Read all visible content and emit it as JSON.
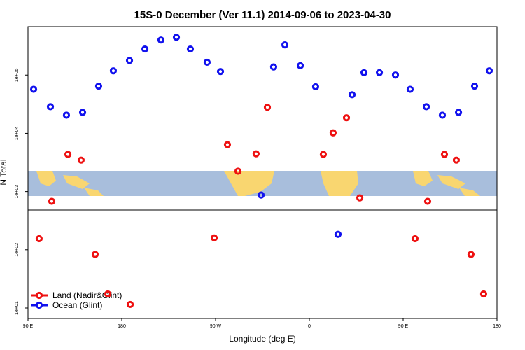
{
  "chart_data": {
    "type": "scatter",
    "title": "15S-0 December (Ver 11.1)   2014-09-06 to 2023-04-30",
    "x_label": "Longitude (deg E)",
    "y_label": "N Total",
    "xlim": [
      90,
      540
    ],
    "xticks": [
      {
        "value": 90,
        "label": "90 E"
      },
      {
        "value": 180,
        "label": "180"
      },
      {
        "value": 270,
        "label": "90 W"
      },
      {
        "value": 360,
        "label": "0"
      },
      {
        "value": 450,
        "label": "90 E"
      },
      {
        "value": 540,
        "label": "180"
      }
    ],
    "ylim": [
      6.6,
      680000
    ],
    "log_scale_y": true,
    "yticks": [
      {
        "value": 10,
        "label": "1e+01"
      },
      {
        "value": 100,
        "label": "1e+02"
      },
      {
        "value": 1000,
        "label": "1e+03"
      },
      {
        "value": 10000,
        "label": "1e+04"
      },
      {
        "value": 100000,
        "label": "1e+05"
      }
    ],
    "legend": "bottom-left",
    "series": [
      {
        "name": "Land (Nadir&Glint)",
        "color": "#ee1111",
        "x": [
          100.7,
          112.8,
          128.3,
          141,
          154.5,
          166.6,
          188.1,
          268.7,
          281.4,
          291.5,
          308.9,
          319.7,
          373.4,
          382.8,
          395.6,
          408.4,
          461.4,
          473.5,
          489.6,
          501,
          515.1,
          527.2
        ],
        "values": [
          155,
          680,
          4350,
          3470,
          83,
          17.4,
          11.5,
          160,
          6400,
          2240,
          4450,
          28000,
          4350,
          10200,
          18500,
          780,
          155,
          680,
          4350,
          3470,
          83,
          17.4
        ]
      },
      {
        "name": "Ocean (Glint)",
        "color": "#1111ee",
        "x": [
          95.4,
          111.5,
          126.9,
          142.4,
          157.8,
          171.9,
          187.4,
          202.2,
          217.6,
          232.4,
          245.8,
          261.9,
          274.7,
          313.7,
          325.7,
          336.5,
          351.3,
          366,
          387.5,
          401,
          412.4,
          427.2,
          442.6,
          456.7,
          472.2,
          487.6,
          503.1,
          518.5,
          532.6
        ],
        "values": [
          57000,
          28700,
          20500,
          22900,
          64500,
          118000,
          178000,
          280000,
          400000,
          445000,
          280000,
          166000,
          115000,
          870,
          138000,
          330000,
          145000,
          63000,
          184,
          46000,
          110000,
          110000,
          100000,
          57000,
          28700,
          20500,
          22900,
          64500,
          118000
        ]
      }
    ]
  }
}
